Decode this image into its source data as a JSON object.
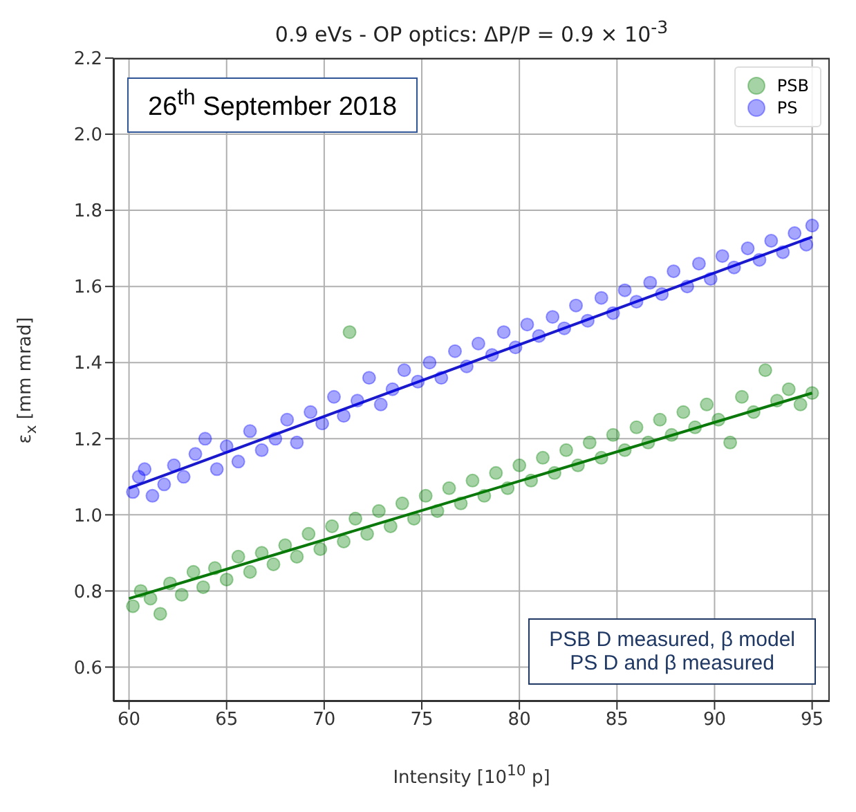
{
  "chart_data": {
    "type": "scatter",
    "title": "0.9 eVs - OP optics: ΔP/P = 0.9 × 10$^{-3}$",
    "xlabel": "Intensity [10$^{10}$ p]",
    "ylabel": "ε$_{x}$ [mm mrad]",
    "annotations": [
      "26$^{th}$ September 2018",
      "PSB D measured, β model",
      "PS D and β measured"
    ],
    "xlim": [
      59.2,
      95.9
    ],
    "xticks": [
      60,
      65,
      70,
      75,
      80,
      85,
      90,
      95
    ],
    "ylim": [
      0.51,
      2.2
    ],
    "yticks": [
      0.6,
      0.8,
      {
        "value": 1,
        "label": "1.0"
      },
      1.2,
      1.4,
      1.6,
      1.8,
      {
        "value": 2,
        "label": "2.0"
      },
      2.2
    ],
    "grid": true,
    "legend": "top right",
    "series": [
      {
        "name": "PSB",
        "marker": "circle",
        "color": "#008000",
        "x": [
          60.2,
          60.6,
          61.1,
          61.6,
          62.1,
          62.7,
          63.3,
          63.8,
          64.4,
          65.0,
          65.6,
          66.2,
          66.8,
          67.4,
          68.0,
          68.6,
          69.2,
          69.8,
          70.4,
          71.0,
          71.3,
          71.6,
          72.2,
          72.8,
          73.4,
          74.0,
          74.6,
          75.2,
          75.8,
          76.4,
          77.0,
          77.6,
          78.2,
          78.8,
          79.4,
          80.0,
          80.6,
          81.2,
          81.8,
          82.4,
          83.0,
          83.6,
          84.2,
          84.8,
          85.4,
          86.0,
          86.6,
          87.2,
          87.8,
          88.4,
          89.0,
          89.6,
          90.2,
          90.8,
          91.4,
          92.0,
          92.6,
          93.2,
          93.8,
          94.4,
          95.0
        ],
        "values": [
          0.76,
          0.8,
          0.78,
          0.74,
          0.82,
          0.79,
          0.85,
          0.81,
          0.86,
          0.83,
          0.89,
          0.85,
          0.9,
          0.87,
          0.92,
          0.89,
          0.95,
          0.91,
          0.97,
          0.93,
          1.48,
          0.99,
          0.95,
          1.01,
          0.97,
          1.03,
          0.99,
          1.05,
          1.01,
          1.07,
          1.03,
          1.09,
          1.05,
          1.11,
          1.07,
          1.13,
          1.09,
          1.15,
          1.11,
          1.17,
          1.13,
          1.19,
          1.15,
          1.21,
          1.17,
          1.23,
          1.19,
          1.25,
          1.21,
          1.27,
          1.23,
          1.29,
          1.25,
          1.19,
          1.31,
          1.27,
          1.38,
          1.3,
          1.33,
          1.29,
          1.32
        ]
      },
      {
        "name": "PS",
        "marker": "circle",
        "color": "#0000ff",
        "x": [
          60.2,
          60.5,
          60.8,
          61.2,
          61.8,
          62.3,
          62.8,
          63.4,
          63.9,
          64.5,
          65.0,
          65.6,
          66.2,
          66.8,
          67.5,
          68.1,
          68.6,
          69.3,
          69.9,
          70.5,
          71.0,
          71.7,
          72.3,
          72.9,
          73.5,
          74.1,
          74.8,
          75.4,
          76.0,
          76.7,
          77.3,
          77.9,
          78.6,
          79.2,
          79.8,
          80.4,
          81.0,
          81.7,
          82.3,
          82.9,
          83.5,
          84.2,
          84.8,
          85.4,
          86.0,
          86.7,
          87.3,
          87.9,
          88.6,
          89.2,
          89.8,
          90.4,
          91.0,
          91.7,
          92.3,
          92.9,
          93.5,
          94.1,
          94.7,
          95.0
        ],
        "values": [
          1.06,
          1.1,
          1.12,
          1.05,
          1.08,
          1.13,
          1.1,
          1.16,
          1.2,
          1.12,
          1.18,
          1.14,
          1.22,
          1.17,
          1.2,
          1.25,
          1.19,
          1.27,
          1.24,
          1.31,
          1.26,
          1.3,
          1.36,
          1.29,
          1.33,
          1.38,
          1.35,
          1.4,
          1.36,
          1.43,
          1.39,
          1.45,
          1.42,
          1.48,
          1.44,
          1.5,
          1.47,
          1.52,
          1.49,
          1.55,
          1.51,
          1.57,
          1.53,
          1.59,
          1.56,
          1.61,
          1.58,
          1.64,
          1.6,
          1.66,
          1.62,
          1.68,
          1.65,
          1.7,
          1.67,
          1.72,
          1.69,
          1.74,
          1.71,
          1.76
        ]
      },
      {
        "type": "line",
        "marker": "none",
        "color": "#0a780a",
        "x": [
          60,
          95
        ],
        "values": [
          0.78,
          1.32
        ]
      },
      {
        "type": "line",
        "marker": "none",
        "color": "#1a1acc",
        "x": [
          60,
          95
        ],
        "values": [
          1.07,
          1.73
        ]
      }
    ]
  }
}
